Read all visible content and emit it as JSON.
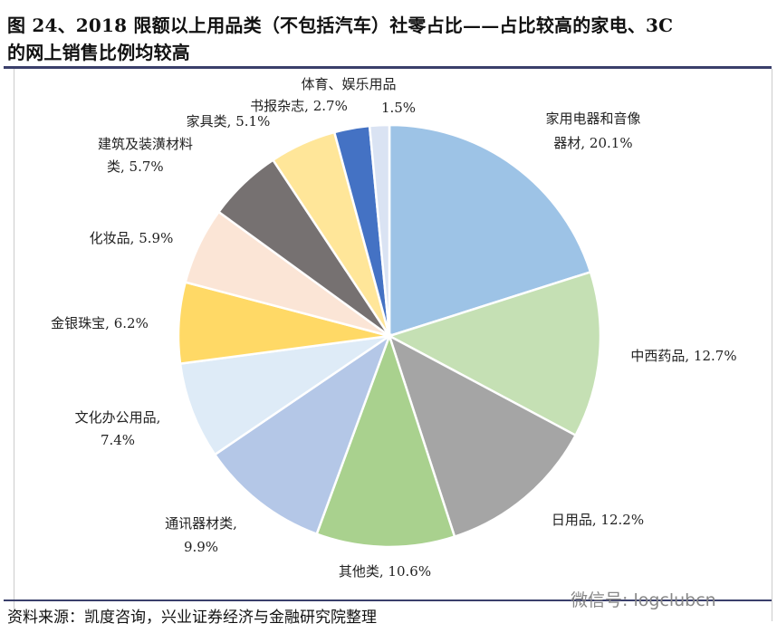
{
  "title_lines": [
    "图 24、2018 限额以上用品类（不包括汽车）社零占比——占比较高的家电、3C",
    "的网上销售比例均较高"
  ],
  "source": "资料来源：凯度咨询，兴业证券经济与金融研究院整理",
  "watermark": "微信号: logclubcn",
  "chart_data": {
    "type": "pie",
    "start": "top",
    "direction": "clockwise",
    "unit": "%",
    "slices": [
      {
        "name": "家用电器和音像器材",
        "value": 20.1,
        "color": "#9dc3e6",
        "label_lines": [
          "家用电器和音像",
          "器材, 20.1%"
        ]
      },
      {
        "name": "中西药品",
        "value": 12.7,
        "color": "#c5e0b4",
        "label_lines": [
          "中西药品, 12.7%"
        ]
      },
      {
        "name": "日用品",
        "value": 12.2,
        "color": "#a5a5a5",
        "label_lines": [
          "日用品, 12.2%"
        ]
      },
      {
        "name": "其他类",
        "value": 10.6,
        "color": "#a9d18e",
        "label_lines": [
          "其他类, 10.6%"
        ]
      },
      {
        "name": "通讯器材类",
        "value": 9.9,
        "color": "#b4c7e7",
        "label_lines": [
          "通讯器材类,",
          "9.9%"
        ]
      },
      {
        "name": "文化办公用品",
        "value": 7.4,
        "color": "#deebf7",
        "label_lines": [
          "文化办公用品,",
          "7.4%"
        ]
      },
      {
        "name": "金银珠宝",
        "value": 6.2,
        "color": "#ffd966",
        "label_lines": [
          "金银珠宝, 6.2%"
        ]
      },
      {
        "name": "化妆品",
        "value": 5.9,
        "color": "#fbe5d6",
        "label_lines": [
          "化妆品, 5.9%"
        ]
      },
      {
        "name": "建筑及装潢材料类",
        "value": 5.7,
        "color": "#767171",
        "label_lines": [
          "建筑及装潢材料",
          "类, 5.7%"
        ]
      },
      {
        "name": "家具类",
        "value": 5.1,
        "color": "#ffe699",
        "label_lines": [
          "家具类, 5.1%"
        ]
      },
      {
        "name": "书报杂志",
        "value": 2.7,
        "color": "#4472c4",
        "label_lines": [
          "书报杂志, 2.7%"
        ]
      },
      {
        "name": "体育、娱乐用品",
        "value": 1.5,
        "color": "#dae3f3",
        "label_lines": [
          "体育、娱乐用品",
          "1.5%"
        ]
      }
    ]
  }
}
